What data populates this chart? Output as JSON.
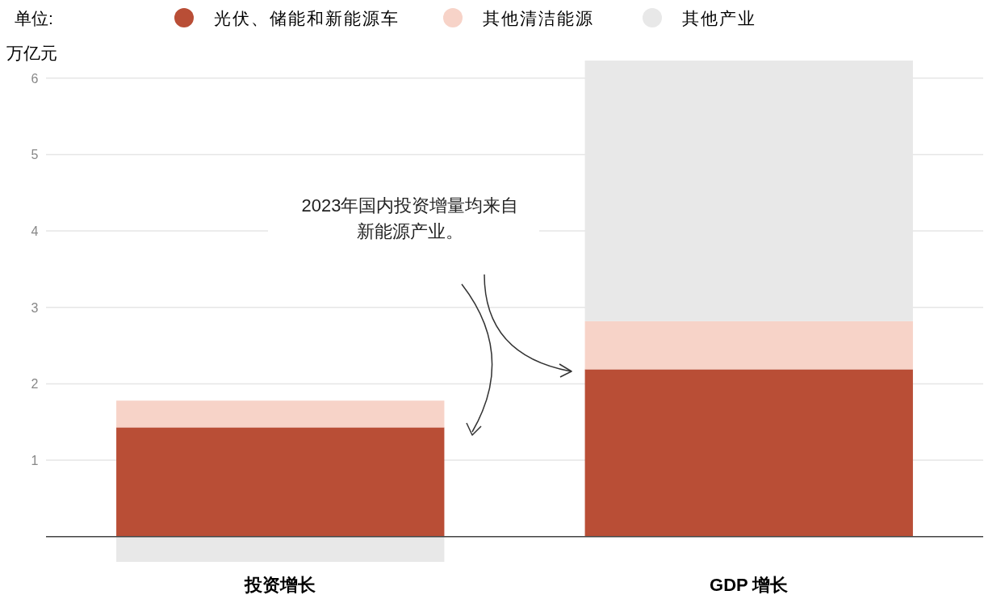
{
  "chart_data": {
    "type": "bar",
    "stacked": true,
    "legend_title": "单位:",
    "ylabel": "万亿元",
    "categories": [
      "投资增长",
      "GDP 增长"
    ],
    "series": [
      {
        "name": "光伏、储能和新能源车",
        "color": "#b94e36",
        "values": [
          1.43,
          2.19
        ]
      },
      {
        "name": "其他清洁能源",
        "color": "#f7d3c8",
        "values": [
          0.35,
          0.63
        ]
      },
      {
        "name": "其他产业",
        "color": "#e8e8e8",
        "values": [
          -0.33,
          3.41
        ]
      }
    ],
    "ylim": [
      -0.33,
      6.23
    ],
    "yticks": [
      1,
      2,
      3,
      4,
      5,
      6
    ],
    "grid": "y",
    "legend": "top",
    "annotations": [
      "2023年国内投资增量均来自新能源产业。"
    ]
  }
}
